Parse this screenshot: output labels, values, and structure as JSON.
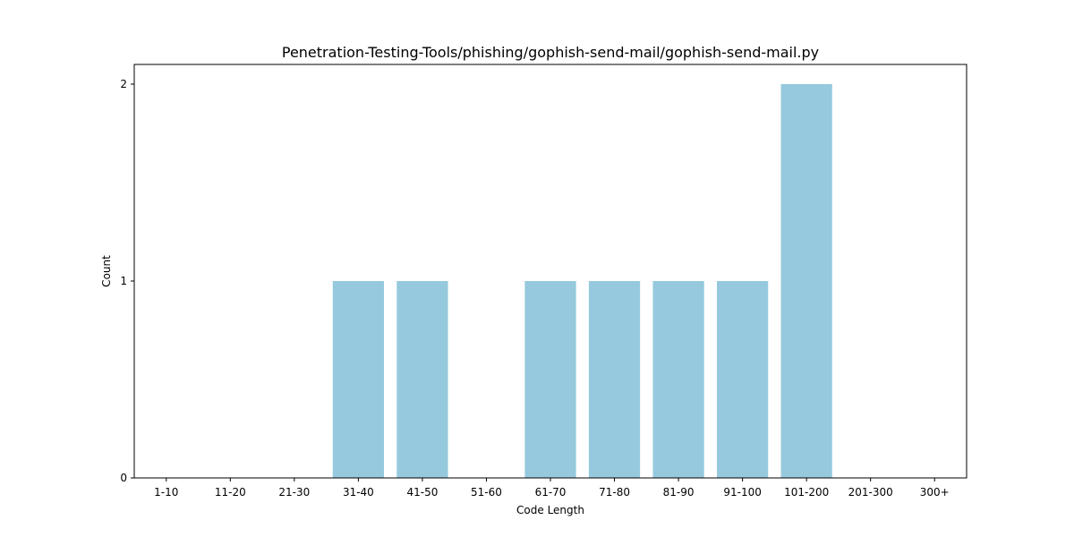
{
  "chart_data": {
    "type": "bar",
    "title": "Penetration-Testing-Tools/phishing/gophish-send-mail/gophish-send-mail.py",
    "xlabel": "Code Length",
    "ylabel": "Count",
    "categories": [
      "1-10",
      "11-20",
      "21-30",
      "31-40",
      "41-50",
      "51-60",
      "61-70",
      "71-80",
      "81-90",
      "91-100",
      "101-200",
      "201-300",
      "300+"
    ],
    "values": [
      0,
      0,
      0,
      1,
      1,
      0,
      1,
      1,
      1,
      1,
      2,
      0,
      0
    ],
    "ylim": [
      0,
      2.1
    ],
    "yticks": [
      0,
      1,
      2
    ],
    "bar_color": "#96c9dd",
    "grid": false,
    "legend": "none"
  }
}
